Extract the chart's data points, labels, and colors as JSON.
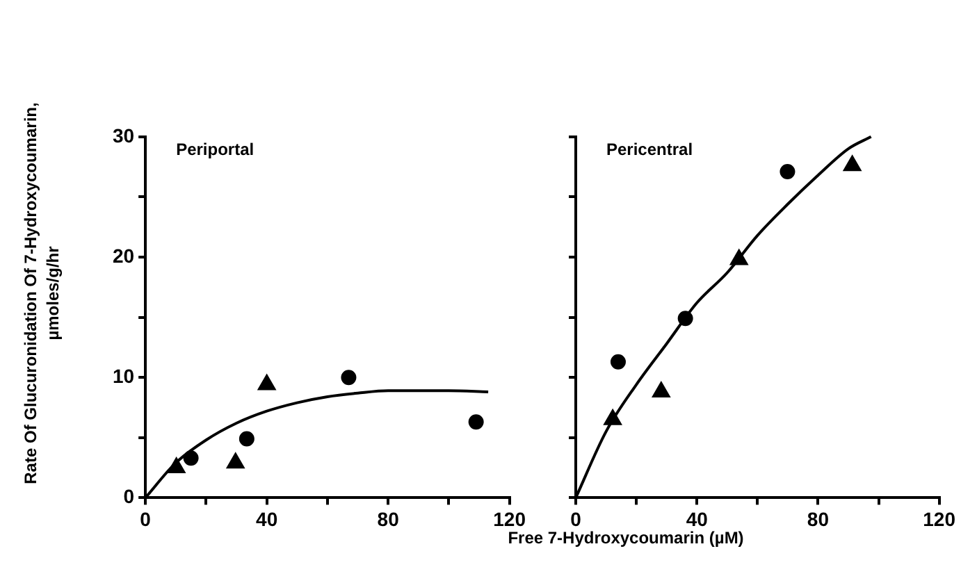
{
  "chart_data": [
    {
      "type": "scatter",
      "title": "Periportal",
      "ylabel": "Rate Of Glucuronidation Of 7-Hydroxycoumarin,\nµmoles/g/hr",
      "xlabel": "Free 7-Hydroxycoumarin (µM)",
      "xlim": [
        0,
        120
      ],
      "xticks": [
        0,
        {
          "value": 20,
          "label": null
        },
        40,
        {
          "value": 60,
          "label": null
        },
        80,
        {
          "value": 100,
          "label": null
        },
        120
      ],
      "ylim": [
        0,
        30
      ],
      "yticks": [
        0,
        {
          "value": 5,
          "label": null
        },
        10,
        {
          "value": 15,
          "label": null
        },
        20,
        {
          "value": 25,
          "label": null
        },
        30
      ],
      "grid": false,
      "series": [
        {
          "marker": "triangle",
          "color": "#000000",
          "x": [
            10.2,
            29.7,
            40
          ],
          "values": [
            2.5,
            2.9,
            9.4
          ]
        },
        {
          "marker": "circle",
          "color": "#000000",
          "x": [
            15,
            33.4,
            67,
            109
          ],
          "values": [
            3.3,
            4.9,
            10,
            6.3
          ]
        },
        {
          "type": "line",
          "marker": "none",
          "color": "#000000",
          "x": [
            0,
            10,
            20,
            30,
            40,
            50,
            60,
            70,
            80,
            90,
            100,
            113
          ],
          "values": [
            0,
            2.9,
            4.8,
            6.2,
            7.2,
            7.9,
            8.4,
            8.7,
            8.9,
            8.9,
            8.9,
            8.8
          ]
        }
      ]
    },
    {
      "type": "scatter",
      "title": "Pericentral",
      "tick_labels": "x",
      "xlim": [
        0,
        120
      ],
      "xticks": [
        0,
        {
          "value": 20,
          "label": null
        },
        40,
        {
          "value": 60,
          "label": null
        },
        80,
        {
          "value": 100,
          "label": null
        },
        120
      ],
      "ylim": [
        0,
        30
      ],
      "yticks": [
        0,
        {
          "value": 5,
          "label": null
        },
        10,
        {
          "value": 15,
          "label": null
        },
        20,
        {
          "value": 25,
          "label": null
        },
        30
      ],
      "grid": false,
      "series": [
        {
          "marker": "triangle",
          "color": "#000000",
          "x": [
            12.2,
            28.2,
            53.9,
            91.3
          ],
          "values": [
            6.5,
            8.8,
            19.8,
            27.6
          ]
        },
        {
          "marker": "circle",
          "color": "#000000",
          "x": [
            14,
            36.2,
            69.9
          ],
          "values": [
            11.3,
            14.9,
            27.1
          ]
        },
        {
          "type": "line",
          "marker": "none",
          "color": "#000000",
          "x": [
            0,
            10,
            20,
            30,
            40,
            50,
            60,
            70,
            80,
            90,
            97.5
          ],
          "values": [
            0,
            5.5,
            9.4,
            12.8,
            16.2,
            18.7,
            21.8,
            24.4,
            26.8,
            29,
            30
          ]
        }
      ]
    }
  ]
}
